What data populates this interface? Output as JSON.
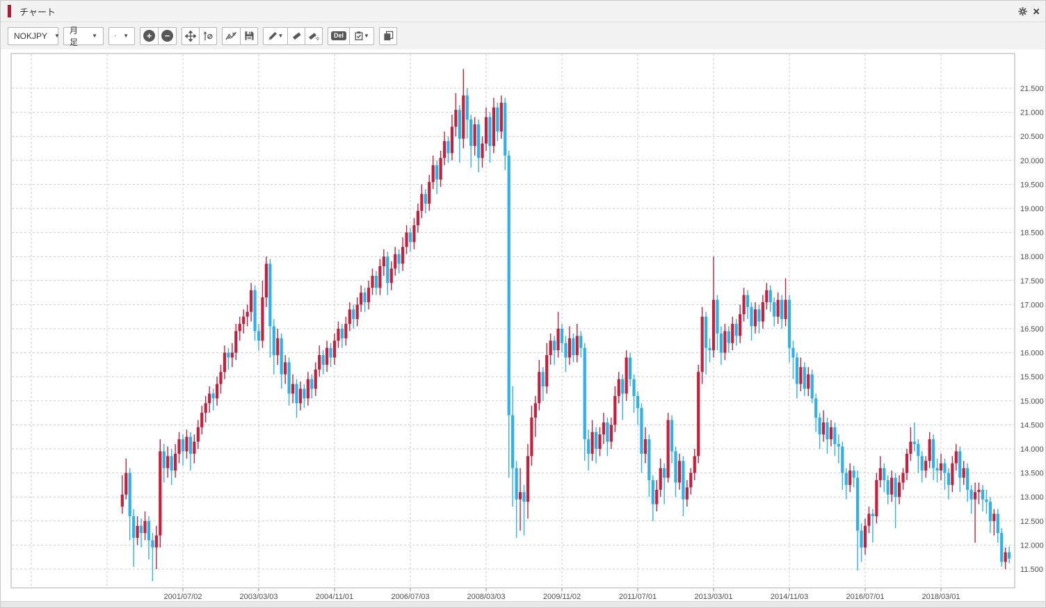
{
  "window": {
    "title": "チャート"
  },
  "icons": {
    "dropdown_arrow": "▼",
    "zoom_in": "+",
    "zoom_out": "−",
    "close": "×"
  },
  "toolbar": {
    "symbol_dropdown": {
      "value": "NOKJPY"
    },
    "timeframe_dropdown": {
      "value": "月足"
    },
    "del_label": "Del"
  },
  "chart_data": {
    "type": "candlestick",
    "symbol": "NOKJPY",
    "timeframe": "月足 (monthly)",
    "start_month": "2000/03",
    "up_color": "#c2203d",
    "down_color": "#2fb0e8",
    "grid": "dashed",
    "y_axis": {
      "min": 11.5,
      "max": 21.5,
      "step": 0.5,
      "labels": [
        "21.500",
        "21.000",
        "20.500",
        "20.000",
        "19.500",
        "19.000",
        "18.500",
        "18.000",
        "17.500",
        "17.000",
        "16.500",
        "16.000",
        "15.500",
        "15.000",
        "14.500",
        "14.000",
        "13.500",
        "13.000",
        "12.500",
        "12.000",
        "11.500"
      ]
    },
    "x_axis": {
      "labels": [
        "2001/07/02",
        "2003/03/03",
        "2004/11/01",
        "2006/07/03",
        "2008/03/03",
        "2009/11/02",
        "2011/07/01",
        "2013/03/01",
        "2014/11/03",
        "2016/07/01",
        "2018/03/01"
      ],
      "first_label_candle_index": 16,
      "candles_per_label": 20,
      "extra_gridline_indices": [
        -24,
        -4
      ]
    },
    "candles": [
      [
        12.8,
        13.45,
        12.65,
        13.05
      ],
      [
        13.05,
        13.8,
        12.95,
        13.5
      ],
      [
        13.5,
        13.6,
        12.1,
        12.6
      ],
      [
        12.6,
        12.75,
        11.55,
        12.15
      ],
      [
        12.15,
        12.6,
        12.0,
        12.4
      ],
      [
        12.4,
        12.55,
        11.95,
        12.25
      ],
      [
        12.25,
        12.7,
        12.1,
        12.5
      ],
      [
        12.5,
        12.6,
        11.7,
        12.1
      ],
      [
        12.1,
        12.25,
        11.25,
        11.95
      ],
      [
        11.95,
        12.4,
        11.5,
        12.2
      ],
      [
        12.2,
        14.2,
        11.95,
        13.95
      ],
      [
        13.95,
        14.1,
        13.3,
        13.6
      ],
      [
        13.6,
        14.05,
        13.4,
        13.85
      ],
      [
        13.85,
        14.0,
        13.25,
        13.55
      ],
      [
        13.55,
        14.1,
        13.4,
        13.9
      ],
      [
        13.9,
        14.35,
        13.7,
        14.2
      ],
      [
        14.2,
        14.3,
        13.65,
        13.95
      ],
      [
        13.95,
        14.4,
        13.8,
        14.25
      ],
      [
        14.25,
        14.35,
        13.55,
        13.9
      ],
      [
        13.9,
        14.3,
        13.7,
        14.15
      ],
      [
        14.15,
        14.6,
        14.0,
        14.45
      ],
      [
        14.45,
        14.9,
        14.3,
        14.75
      ],
      [
        14.75,
        15.1,
        14.55,
        14.95
      ],
      [
        14.95,
        15.3,
        14.75,
        15.15
      ],
      [
        15.15,
        15.25,
        14.8,
        15.05
      ],
      [
        15.05,
        15.5,
        14.9,
        15.35
      ],
      [
        15.35,
        15.75,
        15.15,
        15.6
      ],
      [
        15.6,
        16.15,
        15.45,
        16.0
      ],
      [
        16.0,
        16.1,
        15.65,
        15.9
      ],
      [
        15.9,
        16.2,
        15.7,
        16.0
      ],
      [
        16.0,
        16.6,
        15.85,
        16.45
      ],
      [
        16.45,
        16.75,
        16.25,
        16.6
      ],
      [
        16.6,
        16.9,
        16.4,
        16.75
      ],
      [
        16.75,
        17.0,
        16.55,
        16.85
      ],
      [
        16.85,
        17.45,
        16.65,
        17.3
      ],
      [
        17.3,
        17.4,
        16.25,
        16.45
      ],
      [
        16.45,
        16.6,
        16.05,
        16.25
      ],
      [
        16.25,
        17.5,
        16.1,
        17.15
      ],
      [
        17.15,
        18.0,
        16.95,
        17.85
      ],
      [
        17.85,
        17.95,
        15.9,
        16.55
      ],
      [
        16.55,
        16.7,
        15.55,
        15.95
      ],
      [
        15.95,
        16.5,
        15.75,
        16.3
      ],
      [
        16.3,
        16.4,
        15.25,
        15.55
      ],
      [
        15.55,
        15.95,
        15.35,
        15.8
      ],
      [
        15.8,
        15.9,
        14.9,
        15.15
      ],
      [
        15.15,
        15.55,
        14.95,
        15.35
      ],
      [
        15.35,
        15.45,
        14.65,
        14.95
      ],
      [
        14.95,
        15.4,
        14.8,
        15.25
      ],
      [
        15.25,
        15.35,
        14.85,
        15.05
      ],
      [
        15.05,
        15.6,
        14.9,
        15.45
      ],
      [
        15.45,
        15.55,
        15.05,
        15.25
      ],
      [
        15.25,
        15.8,
        15.1,
        15.65
      ],
      [
        15.65,
        16.15,
        15.5,
        15.95
      ],
      [
        15.95,
        16.05,
        15.55,
        15.75
      ],
      [
        15.75,
        16.25,
        15.6,
        16.1
      ],
      [
        16.1,
        16.2,
        15.7,
        15.9
      ],
      [
        15.9,
        16.4,
        15.75,
        16.25
      ],
      [
        16.25,
        16.65,
        16.1,
        16.5
      ],
      [
        16.5,
        16.6,
        16.1,
        16.3
      ],
      [
        16.3,
        16.75,
        16.15,
        16.6
      ],
      [
        16.6,
        17.05,
        16.45,
        16.9
      ],
      [
        16.9,
        17.0,
        16.5,
        16.7
      ],
      [
        16.7,
        17.15,
        16.55,
        17.0
      ],
      [
        17.0,
        17.4,
        16.85,
        17.25
      ],
      [
        17.25,
        17.35,
        16.85,
        17.05
      ],
      [
        17.05,
        17.5,
        16.9,
        17.35
      ],
      [
        17.35,
        17.75,
        17.2,
        17.6
      ],
      [
        17.6,
        17.7,
        17.2,
        17.35
      ],
      [
        17.35,
        17.95,
        17.2,
        17.8
      ],
      [
        17.8,
        18.15,
        17.6,
        18.0
      ],
      [
        18.0,
        18.1,
        17.2,
        17.45
      ],
      [
        17.45,
        17.9,
        17.3,
        17.75
      ],
      [
        17.75,
        18.2,
        17.6,
        18.05
      ],
      [
        18.05,
        18.15,
        17.65,
        17.85
      ],
      [
        17.85,
        18.4,
        17.7,
        18.2
      ],
      [
        18.2,
        18.65,
        18.05,
        18.5
      ],
      [
        18.5,
        18.6,
        18.1,
        18.3
      ],
      [
        18.3,
        18.8,
        18.15,
        18.65
      ],
      [
        18.65,
        19.1,
        18.5,
        18.95
      ],
      [
        18.95,
        19.5,
        18.8,
        19.3
      ],
      [
        19.3,
        19.4,
        18.9,
        19.1
      ],
      [
        19.1,
        19.7,
        18.95,
        19.55
      ],
      [
        19.55,
        20.1,
        19.4,
        19.9
      ],
      [
        19.9,
        20.0,
        19.3,
        19.6
      ],
      [
        19.6,
        20.2,
        19.45,
        20.05
      ],
      [
        20.05,
        20.6,
        19.9,
        20.4
      ],
      [
        20.4,
        20.5,
        19.95,
        20.15
      ],
      [
        20.15,
        20.95,
        20.0,
        20.7
      ],
      [
        20.7,
        21.4,
        20.5,
        21.05
      ],
      [
        21.05,
        21.15,
        19.95,
        20.45
      ],
      [
        20.45,
        21.9,
        20.25,
        21.35
      ],
      [
        21.35,
        21.5,
        20.45,
        20.85
      ],
      [
        20.85,
        20.95,
        19.85,
        20.3
      ],
      [
        20.3,
        20.9,
        20.1,
        20.75
      ],
      [
        20.75,
        20.85,
        19.75,
        20.05
      ],
      [
        20.05,
        20.5,
        19.85,
        20.35
      ],
      [
        20.35,
        21.1,
        20.2,
        20.9
      ],
      [
        20.9,
        21.0,
        19.95,
        20.3
      ],
      [
        20.3,
        21.3,
        20.15,
        21.1
      ],
      [
        21.1,
        21.2,
        20.4,
        20.6
      ],
      [
        20.6,
        21.35,
        20.45,
        21.2
      ],
      [
        21.2,
        21.3,
        19.8,
        20.1
      ],
      [
        20.1,
        20.2,
        13.4,
        14.7
      ],
      [
        14.7,
        15.3,
        12.8,
        13.6
      ],
      [
        13.6,
        13.75,
        12.15,
        12.95
      ],
      [
        12.95,
        13.6,
        12.3,
        13.1
      ],
      [
        13.1,
        13.25,
        12.2,
        12.9
      ],
      [
        12.9,
        14.1,
        12.55,
        13.85
      ],
      [
        13.85,
        14.9,
        13.65,
        14.65
      ],
      [
        14.65,
        15.1,
        14.25,
        14.95
      ],
      [
        14.95,
        15.85,
        14.8,
        15.6
      ],
      [
        15.6,
        15.7,
        15.0,
        15.3
      ],
      [
        15.3,
        16.2,
        15.15,
        15.95
      ],
      [
        15.95,
        16.4,
        15.75,
        16.25
      ],
      [
        16.25,
        16.35,
        15.75,
        16.05
      ],
      [
        16.05,
        16.85,
        15.9,
        16.5
      ],
      [
        16.5,
        16.6,
        16.0,
        16.2
      ],
      [
        16.2,
        16.35,
        15.6,
        15.9
      ],
      [
        15.9,
        16.55,
        15.75,
        16.3
      ],
      [
        16.3,
        16.4,
        15.8,
        15.95
      ],
      [
        15.95,
        16.6,
        15.8,
        16.35
      ],
      [
        16.35,
        16.45,
        15.9,
        16.1
      ],
      [
        16.1,
        16.2,
        13.75,
        14.2
      ],
      [
        14.2,
        14.4,
        13.55,
        13.9
      ],
      [
        13.9,
        14.6,
        13.75,
        14.35
      ],
      [
        14.35,
        14.45,
        13.7,
        14.0
      ],
      [
        14.0,
        14.45,
        13.85,
        14.3
      ],
      [
        14.3,
        14.75,
        14.1,
        14.55
      ],
      [
        14.55,
        14.65,
        13.85,
        14.15
      ],
      [
        14.15,
        14.65,
        14.0,
        14.5
      ],
      [
        14.5,
        15.3,
        14.35,
        15.1
      ],
      [
        15.1,
        15.6,
        14.95,
        15.45
      ],
      [
        15.45,
        15.55,
        14.6,
        15.15
      ],
      [
        15.15,
        16.05,
        15.0,
        15.9
      ],
      [
        15.9,
        16.0,
        15.3,
        15.45
      ],
      [
        15.45,
        15.55,
        14.75,
        15.1
      ],
      [
        15.1,
        15.2,
        14.5,
        14.85
      ],
      [
        14.85,
        14.95,
        13.5,
        13.9
      ],
      [
        13.9,
        14.45,
        13.7,
        14.2
      ],
      [
        14.2,
        14.3,
        13.0,
        13.35
      ],
      [
        13.35,
        13.45,
        12.5,
        12.85
      ],
      [
        12.85,
        13.35,
        12.7,
        13.15
      ],
      [
        13.15,
        13.8,
        13.0,
        13.6
      ],
      [
        13.6,
        13.7,
        12.85,
        13.4
      ],
      [
        13.4,
        14.75,
        13.3,
        14.6
      ],
      [
        14.6,
        14.7,
        13.7,
        13.95
      ],
      [
        13.95,
        14.05,
        13.0,
        13.3
      ],
      [
        13.3,
        13.9,
        13.15,
        13.75
      ],
      [
        13.75,
        13.85,
        12.6,
        12.95
      ],
      [
        12.95,
        13.35,
        12.8,
        13.2
      ],
      [
        13.2,
        13.6,
        13.05,
        13.5
      ],
      [
        13.5,
        14.0,
        13.35,
        13.85
      ],
      [
        13.85,
        15.75,
        13.7,
        15.6
      ],
      [
        15.6,
        16.95,
        15.35,
        16.75
      ],
      [
        16.75,
        16.85,
        15.55,
        16.1
      ],
      [
        16.1,
        16.3,
        15.8,
        16.05
      ],
      [
        16.05,
        18.0,
        15.9,
        17.1
      ],
      [
        17.1,
        17.2,
        16.05,
        16.4
      ],
      [
        16.4,
        16.55,
        15.75,
        16.0
      ],
      [
        16.0,
        16.6,
        15.85,
        16.45
      ],
      [
        16.45,
        16.55,
        16.0,
        16.2
      ],
      [
        16.2,
        16.75,
        16.05,
        16.6
      ],
      [
        16.6,
        16.7,
        16.15,
        16.35
      ],
      [
        16.35,
        17.0,
        16.2,
        16.8
      ],
      [
        16.8,
        17.35,
        16.65,
        17.2
      ],
      [
        17.2,
        17.3,
        16.7,
        16.95
      ],
      [
        16.95,
        17.05,
        16.25,
        16.55
      ],
      [
        16.55,
        17.05,
        16.4,
        16.9
      ],
      [
        16.9,
        17.0,
        16.4,
        16.65
      ],
      [
        16.65,
        17.2,
        16.5,
        17.05
      ],
      [
        17.05,
        17.45,
        16.9,
        17.3
      ],
      [
        17.3,
        17.4,
        16.85,
        17.05
      ],
      [
        17.05,
        17.15,
        16.55,
        16.75
      ],
      [
        16.75,
        17.25,
        16.6,
        17.1
      ],
      [
        17.1,
        17.2,
        16.5,
        16.7
      ],
      [
        16.7,
        17.55,
        16.55,
        17.1
      ],
      [
        17.1,
        17.2,
        15.8,
        16.1
      ],
      [
        16.1,
        16.25,
        15.45,
        15.9
      ],
      [
        15.9,
        16.0,
        15.05,
        15.35
      ],
      [
        15.35,
        15.9,
        15.2,
        15.7
      ],
      [
        15.7,
        15.8,
        15.1,
        15.25
      ],
      [
        15.25,
        15.7,
        15.1,
        15.55
      ],
      [
        15.55,
        15.65,
        14.95,
        15.05
      ],
      [
        15.05,
        15.15,
        14.35,
        14.65
      ],
      [
        14.65,
        14.75,
        14.0,
        14.3
      ],
      [
        14.3,
        14.8,
        14.15,
        14.55
      ],
      [
        14.55,
        14.65,
        13.9,
        14.2
      ],
      [
        14.2,
        14.6,
        14.05,
        14.45
      ],
      [
        14.45,
        14.55,
        13.85,
        14.1
      ],
      [
        14.1,
        14.3,
        13.7,
        14.05
      ],
      [
        14.05,
        14.15,
        13.15,
        13.5
      ],
      [
        13.5,
        13.6,
        12.95,
        13.25
      ],
      [
        13.25,
        13.7,
        13.1,
        13.55
      ],
      [
        13.55,
        13.65,
        13.2,
        13.4
      ],
      [
        13.4,
        13.55,
        11.47,
        12.3
      ],
      [
        12.3,
        12.45,
        11.65,
        11.95
      ],
      [
        11.95,
        12.55,
        11.8,
        12.4
      ],
      [
        12.4,
        12.8,
        12.25,
        12.65
      ],
      [
        12.65,
        12.75,
        12.05,
        12.6
      ],
      [
        12.6,
        13.5,
        12.45,
        13.35
      ],
      [
        13.35,
        13.85,
        13.2,
        13.6
      ],
      [
        13.6,
        13.7,
        13.1,
        13.35
      ],
      [
        13.35,
        13.45,
        12.85,
        13.05
      ],
      [
        13.05,
        13.55,
        12.9,
        13.4
      ],
      [
        13.4,
        13.5,
        12.35,
        13.0
      ],
      [
        13.0,
        13.45,
        12.85,
        13.3
      ],
      [
        13.3,
        13.6,
        13.15,
        13.5
      ],
      [
        13.5,
        14.0,
        13.35,
        13.9
      ],
      [
        13.9,
        14.45,
        13.75,
        14.15
      ],
      [
        14.15,
        14.55,
        13.95,
        14.1
      ],
      [
        14.1,
        14.2,
        13.5,
        13.85
      ],
      [
        13.85,
        13.95,
        13.3,
        13.55
      ],
      [
        13.55,
        13.85,
        13.4,
        13.75
      ],
      [
        13.75,
        14.35,
        13.6,
        14.2
      ],
      [
        14.2,
        14.3,
        13.35,
        13.6
      ],
      [
        13.6,
        13.8,
        13.3,
        13.55
      ],
      [
        13.55,
        13.9,
        13.35,
        13.7
      ],
      [
        13.7,
        13.8,
        13.15,
        13.5
      ],
      [
        13.5,
        13.6,
        12.95,
        13.25
      ],
      [
        13.25,
        13.85,
        13.1,
        13.7
      ],
      [
        13.7,
        14.1,
        13.55,
        13.95
      ],
      [
        13.95,
        14.05,
        13.1,
        13.4
      ],
      [
        13.4,
        13.75,
        13.25,
        13.6
      ],
      [
        13.6,
        13.7,
        12.9,
        13.15
      ],
      [
        13.15,
        13.25,
        12.65,
        12.95
      ],
      [
        12.95,
        13.3,
        12.05,
        13.1
      ],
      [
        13.1,
        13.3,
        12.85,
        13.15
      ],
      [
        13.15,
        13.25,
        12.7,
        12.95
      ],
      [
        12.95,
        13.15,
        12.65,
        12.9
      ],
      [
        12.9,
        13.0,
        12.25,
        12.5
      ],
      [
        12.5,
        12.75,
        12.2,
        12.65
      ],
      [
        12.65,
        12.75,
        12.05,
        12.25
      ],
      [
        12.25,
        12.35,
        11.55,
        11.65
      ],
      [
        11.65,
        11.95,
        11.5,
        11.85
      ],
      [
        11.85,
        11.97,
        11.62,
        11.72
      ]
    ]
  }
}
